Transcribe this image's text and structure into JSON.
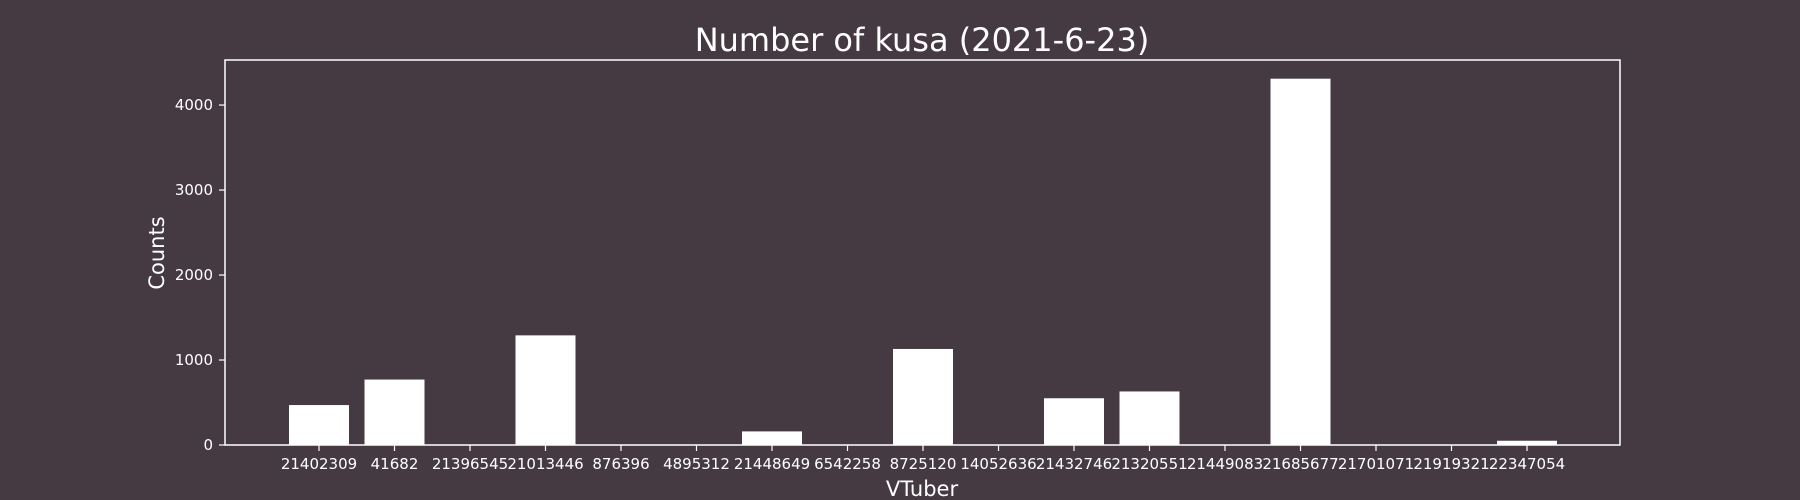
{
  "chart_data": {
    "type": "bar",
    "title": "Number of kusa (2021-6-23)",
    "xlabel": "VTuber",
    "ylabel": "Counts",
    "categories": [
      "21402309",
      "41682",
      "21396545",
      "21013446",
      "876396",
      "4895312",
      "21448649",
      "6542258",
      "8725120",
      "14052636",
      "21432746",
      "21320551",
      "21449083",
      "21685677",
      "21701071",
      "21919321",
      "22347054"
    ],
    "values": [
      470,
      770,
      0,
      1290,
      0,
      0,
      160,
      0,
      1130,
      0,
      550,
      630,
      0,
      4310,
      0,
      0,
      50
    ],
    "ylim": [
      0,
      4530
    ],
    "yticks": [
      0,
      1000,
      2000,
      3000,
      4000
    ],
    "grid": false,
    "legend": "none",
    "colors": {
      "background": "#463a42",
      "bar": "#ffffff",
      "text": "#ffffff",
      "axis": "#ffffff"
    }
  }
}
